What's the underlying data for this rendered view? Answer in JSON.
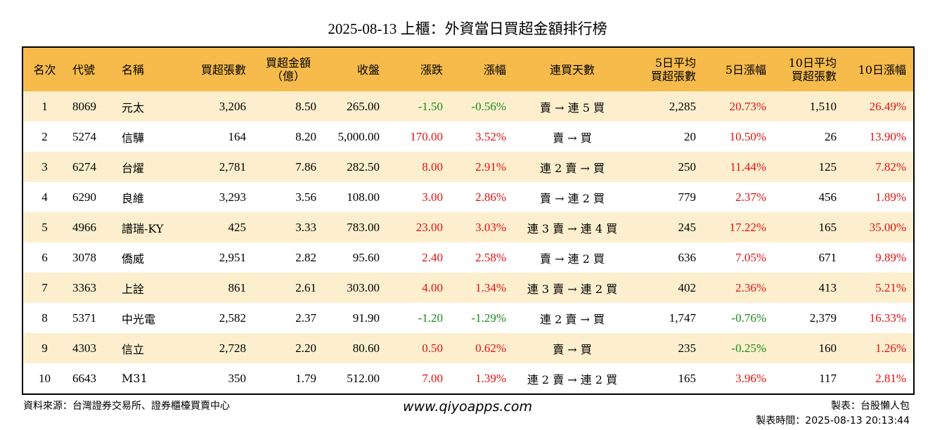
{
  "title": "2025-08-13 上櫃：外資當日買超金額排行榜",
  "columns": {
    "rank": "名次",
    "code": "代號",
    "name": "名稱",
    "buy_lots": [
      "買超張數"
    ],
    "buy_amount": [
      "買超金額",
      "（億）"
    ],
    "close": "收盤",
    "change": "漲跌",
    "change_pct": "漲幅",
    "streak": "連買天數",
    "avg5": [
      "5日平均",
      "買超張數"
    ],
    "pct5": "5日漲幅",
    "avg10": [
      "10日平均",
      "買超張數"
    ],
    "pct10": "10日漲幅"
  },
  "rows": [
    {
      "rank": "1",
      "code": "8069",
      "name": "元太",
      "buy_lots": "3,206",
      "buy_amount": "8.50",
      "close": "265.00",
      "change": "-1.50",
      "change_pct": "-0.56%",
      "streak": "賣 → 連 5 買",
      "avg5": "2,285",
      "pct5": "20.73%",
      "avg10": "1,510",
      "pct10": "26.49%"
    },
    {
      "rank": "2",
      "code": "5274",
      "name": "信驊",
      "buy_lots": "164",
      "buy_amount": "8.20",
      "close": "5,000.00",
      "change": "170.00",
      "change_pct": "3.52%",
      "streak": "賣 → 買",
      "avg5": "20",
      "pct5": "10.50%",
      "avg10": "26",
      "pct10": "13.90%"
    },
    {
      "rank": "3",
      "code": "6274",
      "name": "台燿",
      "buy_lots": "2,781",
      "buy_amount": "7.86",
      "close": "282.50",
      "change": "8.00",
      "change_pct": "2.91%",
      "streak": "連 2 賣 → 買",
      "avg5": "250",
      "pct5": "11.44%",
      "avg10": "125",
      "pct10": "7.82%"
    },
    {
      "rank": "4",
      "code": "6290",
      "name": "良維",
      "buy_lots": "3,293",
      "buy_amount": "3.56",
      "close": "108.00",
      "change": "3.00",
      "change_pct": "2.86%",
      "streak": "賣 → 連 2 買",
      "avg5": "779",
      "pct5": "2.37%",
      "avg10": "456",
      "pct10": "1.89%"
    },
    {
      "rank": "5",
      "code": "4966",
      "name": "譜瑞-KY",
      "buy_lots": "425",
      "buy_amount": "3.33",
      "close": "783.00",
      "change": "23.00",
      "change_pct": "3.03%",
      "streak": "連 3 賣 → 連 4 買",
      "avg5": "245",
      "pct5": "17.22%",
      "avg10": "165",
      "pct10": "35.00%"
    },
    {
      "rank": "6",
      "code": "3078",
      "name": "僑威",
      "buy_lots": "2,951",
      "buy_amount": "2.82",
      "close": "95.60",
      "change": "2.40",
      "change_pct": "2.58%",
      "streak": "賣 → 連 2 買",
      "avg5": "636",
      "pct5": "7.05%",
      "avg10": "671",
      "pct10": "9.89%"
    },
    {
      "rank": "7",
      "code": "3363",
      "name": "上詮",
      "buy_lots": "861",
      "buy_amount": "2.61",
      "close": "303.00",
      "change": "4.00",
      "change_pct": "1.34%",
      "streak": "連 3 賣 → 連 2 買",
      "avg5": "402",
      "pct5": "2.36%",
      "avg10": "413",
      "pct10": "5.21%"
    },
    {
      "rank": "8",
      "code": "5371",
      "name": "中光電",
      "buy_lots": "2,582",
      "buy_amount": "2.37",
      "close": "91.90",
      "change": "-1.20",
      "change_pct": "-1.29%",
      "streak": "連 2 賣 → 買",
      "avg5": "1,747",
      "pct5": "-0.76%",
      "avg10": "2,379",
      "pct10": "16.33%"
    },
    {
      "rank": "9",
      "code": "4303",
      "name": "信立",
      "buy_lots": "2,728",
      "buy_amount": "2.20",
      "close": "80.60",
      "change": "0.50",
      "change_pct": "0.62%",
      "streak": "賣 → 買",
      "avg5": "235",
      "pct5": "-0.25%",
      "avg10": "160",
      "pct10": "1.26%"
    },
    {
      "rank": "10",
      "code": "6643",
      "name": "M31",
      "buy_lots": "350",
      "buy_amount": "1.79",
      "close": "512.00",
      "change": "7.00",
      "change_pct": "1.39%",
      "streak": "連 2 賣 → 連 2 買",
      "avg5": "165",
      "pct5": "3.96%",
      "avg10": "117",
      "pct10": "2.81%"
    }
  ],
  "footer": {
    "source": "資料來源：台灣證券交易所、證券櫃檯買賣中心",
    "website": "www.qiyoapps.com",
    "maker": "製表：台股懶人包",
    "time_label": "製表時間：",
    "time_value": "2025-08-13 20:13:44"
  },
  "colors": {
    "header_bg": "#f6bb4b",
    "odd_row_bg": "#fdefce",
    "even_row_bg": "#ffffff",
    "up": "#e31010",
    "down": "#1b8a1b"
  }
}
